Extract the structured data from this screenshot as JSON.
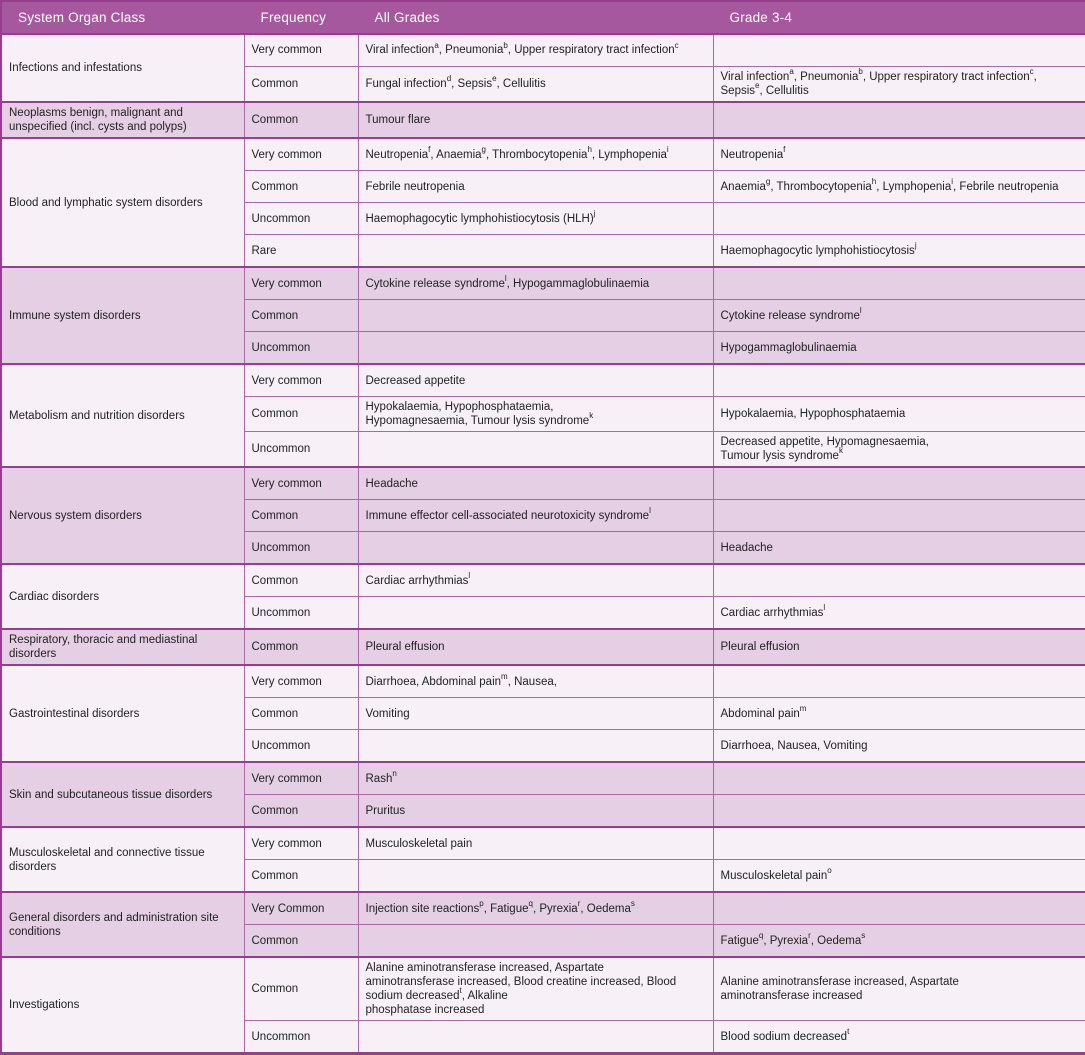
{
  "colors": {
    "header_bg": "#a5589d",
    "row_light": "#f7f0f7",
    "row_dark": "#e4cfe4",
    "border": "#aa6ba5",
    "border_strong": "#963f8e"
  },
  "table": {
    "columns": [
      "System Organ Class",
      "Frequency",
      "All Grades",
      "Grade 3-4"
    ],
    "groups": [
      {
        "soc": "Infections and infestations",
        "rows": [
          {
            "frequency": "Very common",
            "all_grades": "Viral infection{a}, Pneumonia{b}, Upper respiratory tract infection{c}",
            "grade_3_4": ""
          },
          {
            "frequency": "Common",
            "all_grades": "Fungal infection{d}, Sepsis{e}, Cellulitis",
            "grade_3_4": "Viral infection{a}, Pneumonia{b}, Upper respiratory tract infection{c}, Sepsis{e}, Cellulitis"
          }
        ]
      },
      {
        "soc": "Neoplasms benign, malignant and unspecified (incl. cysts and polyps)",
        "rows": [
          {
            "frequency": "Common",
            "all_grades": "Tumour flare",
            "grade_3_4": ""
          }
        ]
      },
      {
        "soc": "Blood and lymphatic system disorders",
        "rows": [
          {
            "frequency": "Very common",
            "all_grades": "Neutropenia{f}, Anaemia{g}, Thrombocytopenia{h}, Lymphopenia{i}",
            "grade_3_4": "Neutropenia{f}"
          },
          {
            "frequency": "Common",
            "all_grades": "Febrile neutropenia",
            "grade_3_4": "Anaemia{g}, Thrombocytopenia{h}, Lymphopenia{i}, Febrile neutropenia"
          },
          {
            "frequency": "Uncommon",
            "all_grades": "Haemophagocytic lymphohistiocytosis (HLH){j}",
            "grade_3_4": ""
          },
          {
            "frequency": "Rare",
            "all_grades": "",
            "grade_3_4": "Haemophagocytic lymphohistiocytosis{j}"
          }
        ]
      },
      {
        "soc": "Immune system disorders",
        "rows": [
          {
            "frequency": "Very common",
            "all_grades": "Cytokine release syndrome{l}, Hypogammaglobulinaemia",
            "grade_3_4": ""
          },
          {
            "frequency": "Common",
            "all_grades": "",
            "grade_3_4": "Cytokine release syndrome{l}"
          },
          {
            "frequency": "Uncommon",
            "all_grades": "",
            "grade_3_4": "Hypogammaglobulinaemia"
          }
        ]
      },
      {
        "soc": "Metabolism and nutrition disorders",
        "rows": [
          {
            "frequency": "Very common",
            "all_grades": "Decreased appetite",
            "grade_3_4": ""
          },
          {
            "frequency": "Common",
            "all_grades": "Hypokalaemia, Hypophosphataemia,\nHypomagnesaemia, Tumour lysis syndrome{k}",
            "grade_3_4": "Hypokalaemia, Hypophosphataemia"
          },
          {
            "frequency": "Uncommon",
            "all_grades": "",
            "grade_3_4": "Decreased appetite, Hypomagnesaemia,\nTumour lysis syndrome{k}"
          }
        ]
      },
      {
        "soc": "Nervous system disorders",
        "rows": [
          {
            "frequency": "Very common",
            "all_grades": "Headache",
            "grade_3_4": ""
          },
          {
            "frequency": "Common",
            "all_grades": "Immune effector cell-associated neurotoxicity syndrome{l}",
            "grade_3_4": ""
          },
          {
            "frequency": "Uncommon",
            "all_grades": "",
            "grade_3_4": "Headache"
          }
        ]
      },
      {
        "soc": "Cardiac disorders",
        "rows": [
          {
            "frequency": "Common",
            "all_grades": "Cardiac arrhythmias{l}",
            "grade_3_4": ""
          },
          {
            "frequency": "Uncommon",
            "all_grades": "",
            "grade_3_4": "Cardiac arrhythmias{l}"
          }
        ]
      },
      {
        "soc": "Respiratory, thoracic and mediastinal disorders",
        "rows": [
          {
            "frequency": "Common",
            "all_grades": "Pleural effusion",
            "grade_3_4": "Pleural effusion"
          }
        ]
      },
      {
        "soc": "Gastrointestinal disorders",
        "rows": [
          {
            "frequency": "Very common",
            "all_grades": "Diarrhoea, Abdominal pain{m}, Nausea,",
            "grade_3_4": ""
          },
          {
            "frequency": "Common",
            "all_grades": "Vomiting",
            "grade_3_4": "Abdominal pain{m}"
          },
          {
            "frequency": "Uncommon",
            "all_grades": "",
            "grade_3_4": "Diarrhoea, Nausea, Vomiting"
          }
        ]
      },
      {
        "soc": "Skin and subcutaneous tissue disorders",
        "rows": [
          {
            "frequency": "Very common",
            "all_grades": "Rash{n}",
            "grade_3_4": ""
          },
          {
            "frequency": "Common",
            "all_grades": "Pruritus",
            "grade_3_4": ""
          }
        ]
      },
      {
        "soc": "Musculoskeletal and connective tissue disorders",
        "rows": [
          {
            "frequency": "Very common",
            "all_grades": "Musculoskeletal pain",
            "grade_3_4": ""
          },
          {
            "frequency": "Common",
            "all_grades": "",
            "grade_3_4": "Musculoskeletal pain{o}"
          }
        ]
      },
      {
        "soc": "General disorders and administration site conditions",
        "rows": [
          {
            "frequency": "Very Common",
            "all_grades": "Injection site reactions{p}, Fatigue{q}, Pyrexia{r}, Oedema{s}",
            "grade_3_4": ""
          },
          {
            "frequency": "Common",
            "all_grades": "",
            "grade_3_4": "Fatigue{q}, Pyrexia{r}, Oedema{s}"
          }
        ]
      },
      {
        "soc": "Investigations",
        "rows": [
          {
            "frequency": "Common",
            "all_grades": "Alanine aminotransferase increased, Aspartate\naminotransferase increased, Blood creatine increased, Blood\nsodium decreased{t}, Alkaline\nphosphatase increased",
            "grade_3_4": "Alanine aminotransferase increased, Aspartate\naminotransferase increased"
          },
          {
            "frequency": "Uncommon",
            "all_grades": "",
            "grade_3_4": "Blood sodium decreased{t}"
          }
        ]
      }
    ]
  }
}
